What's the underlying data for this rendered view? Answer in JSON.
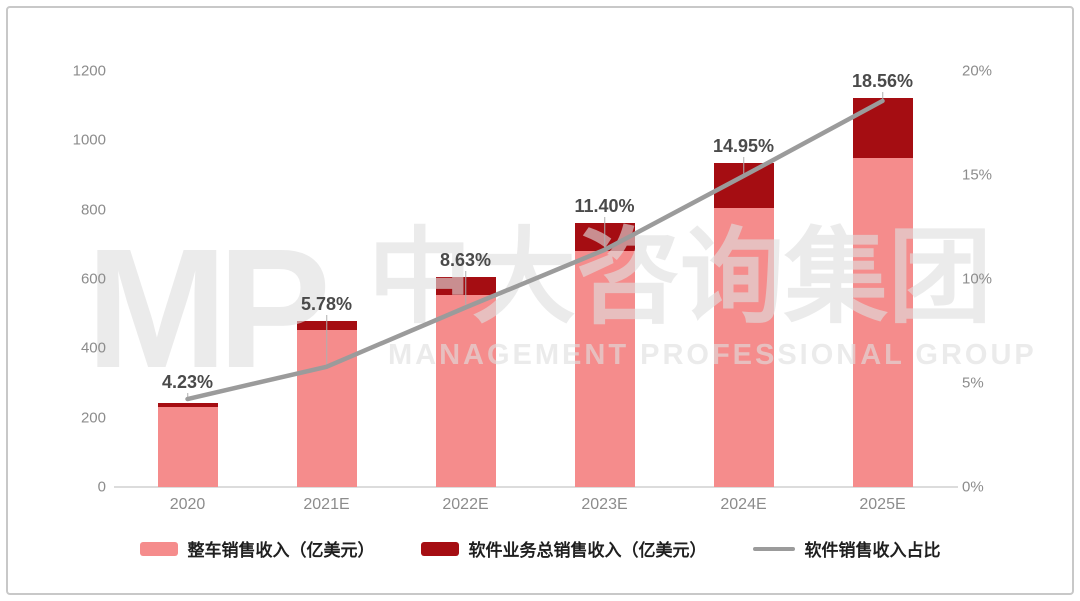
{
  "watermark": {
    "logo": "MP",
    "cn": "中大咨询集团",
    "en": "MANAGEMENT PROFESSIONAL GROUP"
  },
  "chart_data": {
    "type": "bar",
    "subtype": "stacked-bar-with-line",
    "categories": [
      "2020",
      "2021E",
      "2022E",
      "2023E",
      "2024E",
      "2025E"
    ],
    "series": [
      {
        "name": "整车销售收入（亿美元）",
        "type": "bar",
        "stack": true,
        "axis": "left",
        "color": "#F58C8C",
        "values": [
          232,
          452,
          555,
          682,
          805,
          950
        ]
      },
      {
        "name": "软件业务总销售收入（亿美元）",
        "type": "bar",
        "stack": true,
        "axis": "left",
        "color": "#A50D12",
        "values": [
          10,
          28,
          52,
          80,
          130,
          172
        ]
      },
      {
        "name": "软件销售收入占比",
        "type": "line",
        "axis": "right",
        "color": "#9B9B9B",
        "values": [
          4.23,
          5.78,
          8.63,
          11.4,
          14.95,
          18.56
        ]
      }
    ],
    "line_labels": [
      "4.23%",
      "5.78%",
      "8.63%",
      "11.40%",
      "14.95%",
      "18.56%"
    ],
    "left_axis": {
      "min": 0,
      "max": 1200,
      "ticks": [
        "0",
        "200",
        "400",
        "600",
        "800",
        "1000",
        "1200"
      ]
    },
    "right_axis": {
      "min": 0,
      "max": 20,
      "ticks": [
        "0%",
        "5%",
        "10%",
        "15%",
        "20%"
      ]
    },
    "grid": false,
    "legend_position": "bottom",
    "title": "",
    "xlabel": "",
    "ylabel": ""
  },
  "legend": [
    {
      "label": "整车销售收入（亿美元）",
      "swatch": "bar",
      "color": "#F58C8C"
    },
    {
      "label": "软件业务总销售收入（亿美元）",
      "swatch": "bar",
      "color": "#A50D12"
    },
    {
      "label": "软件销售收入占比",
      "swatch": "line",
      "color": "#9B9B9B"
    }
  ]
}
